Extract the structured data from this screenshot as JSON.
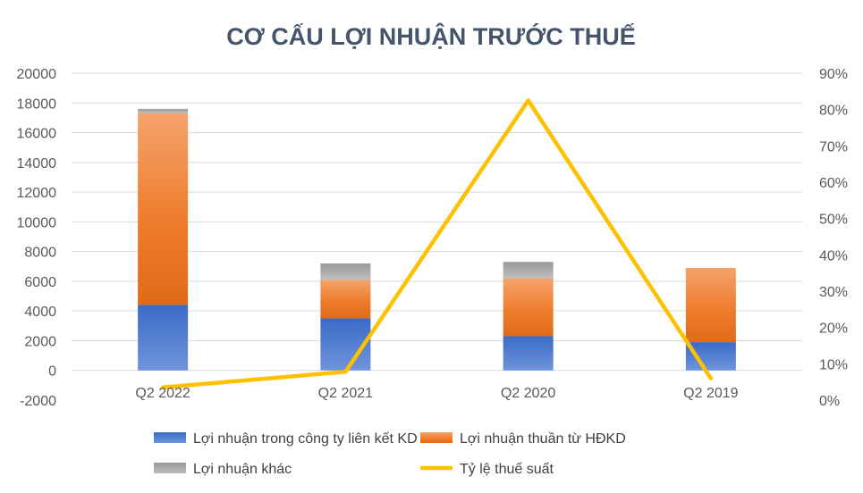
{
  "chart_data": {
    "type": "bar",
    "stacked": true,
    "title": "CƠ CẤU LỢI NHUẬN TRƯỚC THUẾ",
    "categories": [
      "Q2 2022",
      "Q2 2021",
      "Q2 2020",
      "Q2 2019"
    ],
    "y_left": {
      "ylim": [
        -2000,
        20000
      ],
      "ticks": [
        "-2000",
        "0",
        "2000",
        "4000",
        "6000",
        "8000",
        "10000",
        "12000",
        "14000",
        "16000",
        "18000",
        "20000"
      ]
    },
    "y_right": {
      "ylim": [
        0,
        0.9
      ],
      "ticks": [
        "0%",
        "10%",
        "20%",
        "30%",
        "40%",
        "50%",
        "60%",
        "70%",
        "80%",
        "90%"
      ]
    },
    "grid": "horizontal",
    "legend_position": "bottom",
    "series": [
      {
        "name": "Lợi nhuận trong công ty liên kết KD",
        "type": "bar",
        "axis": "left",
        "color": "#4472c4",
        "values": [
          4400,
          3500,
          2300,
          1900
        ]
      },
      {
        "name": "Lợi nhuận thuần từ HĐKD",
        "type": "bar",
        "axis": "left",
        "color": "#ed7d31",
        "values": [
          12900,
          2600,
          3900,
          5000
        ]
      },
      {
        "name": "Lợi nhuận khác",
        "type": "bar",
        "axis": "left",
        "color": "#a5a5a5",
        "values": [
          300,
          1100,
          1100,
          0
        ]
      },
      {
        "name": "Tỷ lệ thuế suất",
        "type": "line",
        "axis": "right",
        "color": "#ffc000",
        "values": [
          0.035,
          0.078,
          0.825,
          0.06
        ]
      }
    ]
  }
}
